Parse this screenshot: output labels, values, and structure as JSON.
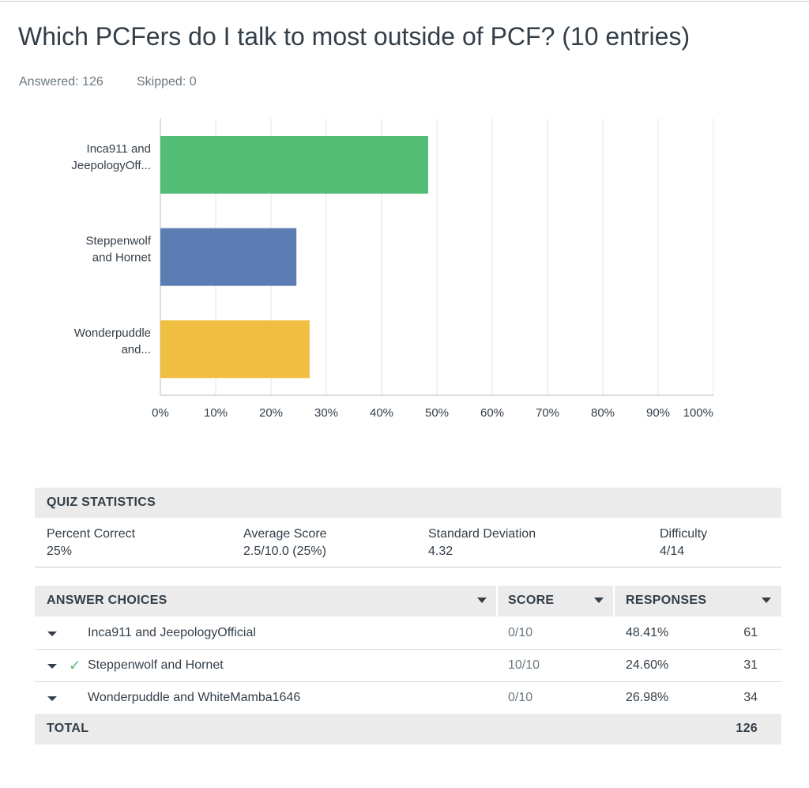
{
  "header": {
    "title": "Which PCFers do I talk to most outside of PCF? (10 entries)",
    "answered": "Answered: 126",
    "skipped": "Skipped: 0"
  },
  "chart_data": {
    "type": "bar",
    "orientation": "horizontal",
    "categories": [
      "Inca911 and JeepologyOff...",
      "Steppenwolf and Hornet",
      "Wonderpuddle and..."
    ],
    "values": [
      48.41,
      24.6,
      26.98
    ],
    "colors": [
      "#53bc75",
      "#5b7db3",
      "#f0be41"
    ],
    "xlim": [
      0,
      100
    ],
    "xticks": [
      {
        "value": 0,
        "label": "0%"
      },
      {
        "value": 10,
        "label": "10%"
      },
      {
        "value": 20,
        "label": "20%"
      },
      {
        "value": 30,
        "label": "30%"
      },
      {
        "value": 40,
        "label": "40%"
      },
      {
        "value": 50,
        "label": "50%"
      },
      {
        "value": 60,
        "label": "60%"
      },
      {
        "value": 70,
        "label": "70%"
      },
      {
        "value": 80,
        "label": "80%"
      },
      {
        "value": 90,
        "label": "90%"
      },
      {
        "value": 100,
        "label": "100%"
      }
    ],
    "grid": true
  },
  "quiz_statistics": {
    "title": "QUIZ STATISTICS",
    "items": [
      {
        "label": "Percent Correct",
        "value": "25%"
      },
      {
        "label": "Average Score",
        "value": "2.5/10.0 (25%)"
      },
      {
        "label": "Standard Deviation",
        "value": "4.32"
      },
      {
        "label": "Difficulty",
        "value": "4/14"
      }
    ]
  },
  "answers": {
    "headers": [
      "ANSWER CHOICES",
      "SCORE",
      "RESPONSES"
    ],
    "rows": [
      {
        "choice": "Inca911 and JeepologyOfficial",
        "score": "0/10",
        "percent": "48.41%",
        "count": "61",
        "correct": false
      },
      {
        "choice": "Steppenwolf and Hornet",
        "score": "10/10",
        "percent": "24.60%",
        "count": "31",
        "correct": true
      },
      {
        "choice": "Wonderpuddle and WhiteMamba1646",
        "score": "0/10",
        "percent": "26.98%",
        "count": "34",
        "correct": false
      }
    ],
    "total": {
      "label": "TOTAL",
      "value": "126"
    }
  }
}
